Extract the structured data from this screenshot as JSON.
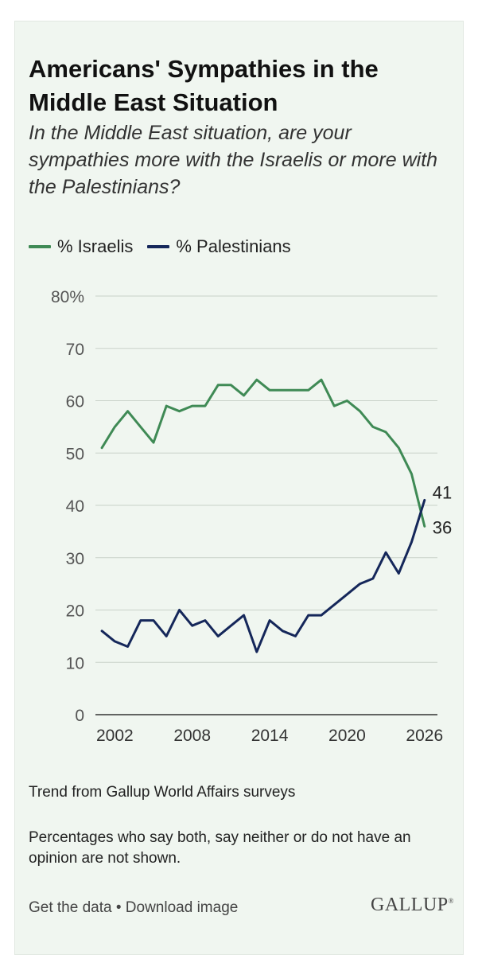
{
  "title": "Americans' Sympathies in the Middle East Situation",
  "subtitle": "In the Middle East situation, are your sympathies more with the Israelis or more with the Palestinians?",
  "legend": {
    "israelis": "% Israelis",
    "palestinians": "% Palestinians"
  },
  "colors": {
    "israelis": "#3f8a55",
    "palestinians": "#15275a",
    "grid": "#c9d2c9",
    "axis": "#333333"
  },
  "chart_data": {
    "type": "line",
    "xlim": [
      2000.5,
      2027
    ],
    "ylim": [
      0,
      80
    ],
    "x_ticks": [
      2002,
      2008,
      2014,
      2020,
      2026
    ],
    "y_ticks": [
      {
        "value": 0,
        "label": "0"
      },
      {
        "value": 10,
        "label": "10"
      },
      {
        "value": 20,
        "label": "20"
      },
      {
        "value": 30,
        "label": "30"
      },
      {
        "value": 40,
        "label": "40"
      },
      {
        "value": 50,
        "label": "50"
      },
      {
        "value": 60,
        "label": "60"
      },
      {
        "value": 70,
        "label": "70"
      },
      {
        "value": 80,
        "label": "80%"
      }
    ],
    "grid": true,
    "legend_position": "top-left",
    "x": [
      2001,
      2002,
      2003,
      2004,
      2005,
      2006,
      2007,
      2008,
      2009,
      2010,
      2011,
      2012,
      2013,
      2014,
      2015,
      2016,
      2017,
      2018,
      2019,
      2020,
      2021,
      2022,
      2023,
      2024,
      2025,
      2026
    ],
    "series": [
      {
        "key": "israelis",
        "name": "% Israelis",
        "values": [
          51,
          55,
          58,
          55,
          52,
          59,
          58,
          59,
          59,
          63,
          63,
          61,
          64,
          62,
          62,
          62,
          62,
          64,
          59,
          60,
          58,
          55,
          54,
          51,
          46,
          36
        ],
        "end_label": "36"
      },
      {
        "key": "palestinians",
        "name": "% Palestinians",
        "values": [
          16,
          14,
          13,
          18,
          18,
          15,
          20,
          17,
          18,
          15,
          17,
          19,
          12,
          18,
          16,
          15,
          19,
          19,
          21,
          23,
          25,
          26,
          31,
          27,
          33,
          41
        ],
        "end_label": "41"
      }
    ]
  },
  "notes": {
    "trend": "Trend from Gallup World Affairs surveys",
    "disclaimer": "Percentages who say both, say neither or do not have an opinion are not shown."
  },
  "footer": {
    "get_data": "Get the data",
    "separator": " • ",
    "download": "Download image",
    "logo": "GALLUP",
    "logo_mark": "®"
  }
}
